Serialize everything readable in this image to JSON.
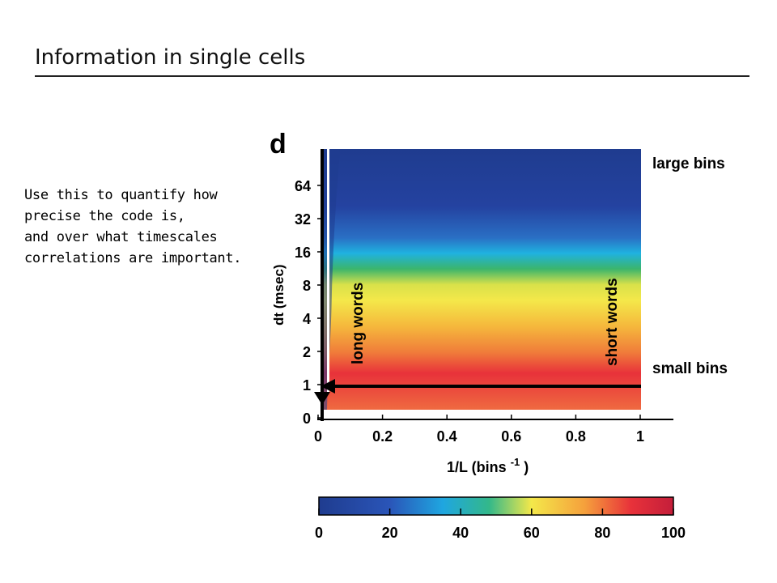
{
  "slide": {
    "title": "Information in single cells",
    "body_lines": [
      "Use this to quantify how",
      "precise the code is,",
      "and over what timescales",
      "correlations are important."
    ]
  },
  "chart_data": {
    "type": "heatmap",
    "panel_label": "d",
    "xlabel": "1/L (bins",
    "xlabel_superscript": "-1",
    "xlabel_suffix": ")",
    "ylabel": "dt (msec)",
    "x_ticks": [
      "0",
      "0.2",
      "0.4",
      "0.6",
      "0.8",
      "1"
    ],
    "x_tick_values": [
      0,
      0.2,
      0.4,
      0.6,
      0.8,
      1
    ],
    "y_ticks": [
      "0",
      "1",
      "2",
      "4",
      "8",
      "16",
      "32",
      "64"
    ],
    "y_tick_values": [
      0,
      1,
      2,
      4,
      8,
      16,
      32,
      64
    ],
    "xlim": [
      0,
      1
    ],
    "y_scale": "log2",
    "colorbar": {
      "ticks": [
        "0",
        "20",
        "40",
        "60",
        "80",
        "100"
      ],
      "tick_values": [
        0,
        20,
        40,
        60,
        80,
        100
      ],
      "range": [
        0,
        100
      ],
      "colormap": "jet"
    },
    "annotations": {
      "large_bins": "large bins",
      "small_bins": "small bins",
      "long_words": "long words",
      "short_words": "short words"
    },
    "colors": {
      "dark_blue": "#1f3c8f",
      "blue": "#2a6fc4",
      "cyan": "#1fb2e0",
      "green": "#3bb56c",
      "yellow": "#f4e84a",
      "orange": "#f5a03c",
      "red": "#e8323a"
    }
  }
}
